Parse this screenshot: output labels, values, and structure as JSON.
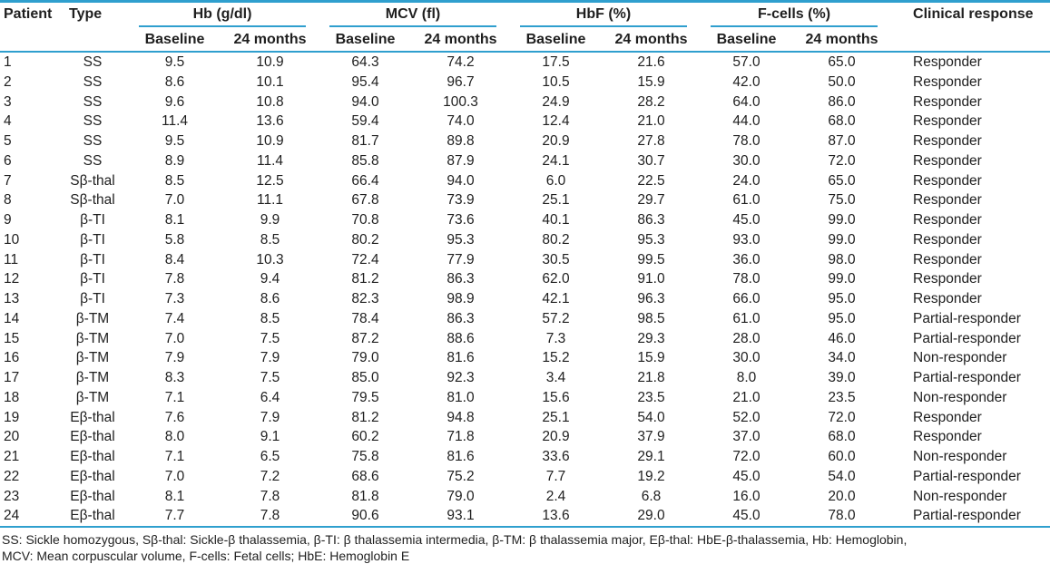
{
  "colors": {
    "rule": "#2f9fce",
    "text": "#1f1f1f",
    "background": "#ffffff"
  },
  "table": {
    "header": {
      "patient": "Patient",
      "type": "Type",
      "groups": [
        {
          "label": "Hb (g/dl)",
          "sub": [
            "Baseline",
            "24 months"
          ]
        },
        {
          "label": "MCV (fl)",
          "sub": [
            "Baseline",
            "24 months"
          ]
        },
        {
          "label": "HbF (%)",
          "sub": [
            "Baseline",
            "24 months"
          ]
        },
        {
          "label": "F-cells (%)",
          "sub": [
            "Baseline",
            "24 months"
          ]
        }
      ],
      "clinical_response": "Clinical response"
    },
    "rows": [
      [
        "1",
        "SS",
        "9.5",
        "10.9",
        "64.3",
        "74.2",
        "17.5",
        "21.6",
        "57.0",
        "65.0",
        "Responder"
      ],
      [
        "2",
        "SS",
        "8.6",
        "10.1",
        "95.4",
        "96.7",
        "10.5",
        "15.9",
        "42.0",
        "50.0",
        "Responder"
      ],
      [
        "3",
        "SS",
        "9.6",
        "10.8",
        "94.0",
        "100.3",
        "24.9",
        "28.2",
        "64.0",
        "86.0",
        "Responder"
      ],
      [
        "4",
        "SS",
        "11.4",
        "13.6",
        "59.4",
        "74.0",
        "12.4",
        "21.0",
        "44.0",
        "68.0",
        "Responder"
      ],
      [
        "5",
        "SS",
        "9.5",
        "10.9",
        "81.7",
        "89.8",
        "20.9",
        "27.8",
        "78.0",
        "87.0",
        "Responder"
      ],
      [
        "6",
        "SS",
        "8.9",
        "11.4",
        "85.8",
        "87.9",
        "24.1",
        "30.7",
        "30.0",
        "72.0",
        "Responder"
      ],
      [
        "7",
        "Sβ-thal",
        "8.5",
        "12.5",
        "66.4",
        "94.0",
        "6.0",
        "22.5",
        "24.0",
        "65.0",
        "Responder"
      ],
      [
        "8",
        "Sβ-thal",
        "7.0",
        "11.1",
        "67.8",
        "73.9",
        "25.1",
        "29.7",
        "61.0",
        "75.0",
        "Responder"
      ],
      [
        "9",
        "β-TI",
        "8.1",
        "9.9",
        "70.8",
        "73.6",
        "40.1",
        "86.3",
        "45.0",
        "99.0",
        "Responder"
      ],
      [
        "10",
        "β-TI",
        "5.8",
        "8.5",
        "80.2",
        "95.3",
        "80.2",
        "95.3",
        "93.0",
        "99.0",
        "Responder"
      ],
      [
        "11",
        "β-TI",
        "8.4",
        "10.3",
        "72.4",
        "77.9",
        "30.5",
        "99.5",
        "36.0",
        "98.0",
        "Responder"
      ],
      [
        "12",
        "β-TI",
        "7.8",
        "9.4",
        "81.2",
        "86.3",
        "62.0",
        "91.0",
        "78.0",
        "99.0",
        "Responder"
      ],
      [
        "13",
        "β-TI",
        "7.3",
        "8.6",
        "82.3",
        "98.9",
        "42.1",
        "96.3",
        "66.0",
        "95.0",
        "Responder"
      ],
      [
        "14",
        "β-TM",
        "7.4",
        "8.5",
        "78.4",
        "86.3",
        "57.2",
        "98.5",
        "61.0",
        "95.0",
        "Partial-responder"
      ],
      [
        "15",
        "β-TM",
        "7.0",
        "7.5",
        "87.2",
        "88.6",
        "7.3",
        "29.3",
        "28.0",
        "46.0",
        "Partial-responder"
      ],
      [
        "16",
        "β-TM",
        "7.9",
        "7.9",
        "79.0",
        "81.6",
        "15.2",
        "15.9",
        "30.0",
        "34.0",
        "Non-responder"
      ],
      [
        "17",
        "β-TM",
        "8.3",
        "7.5",
        "85.0",
        "92.3",
        "3.4",
        "21.8",
        "8.0",
        "39.0",
        "Partial-responder"
      ],
      [
        "18",
        "β-TM",
        "7.1",
        "6.4",
        "79.5",
        "81.0",
        "15.6",
        "23.5",
        "21.0",
        "23.5",
        "Non-responder"
      ],
      [
        "19",
        "Eβ-thal",
        "7.6",
        "7.9",
        "81.2",
        "94.8",
        "25.1",
        "54.0",
        "52.0",
        "72.0",
        "Responder"
      ],
      [
        "20",
        "Eβ-thal",
        "8.0",
        "9.1",
        "60.2",
        "71.8",
        "20.9",
        "37.9",
        "37.0",
        "68.0",
        "Responder"
      ],
      [
        "21",
        "Eβ-thal",
        "7.1",
        "6.5",
        "75.8",
        "81.6",
        "33.6",
        "29.1",
        "72.0",
        "60.0",
        "Non-responder"
      ],
      [
        "22",
        "Eβ-thal",
        "7.0",
        "7.2",
        "68.6",
        "75.2",
        "7.7",
        "19.2",
        "45.0",
        "54.0",
        "Partial-responder"
      ],
      [
        "23",
        "Eβ-thal",
        "8.1",
        "7.8",
        "81.8",
        "79.0",
        "2.4",
        "6.8",
        "16.0",
        "20.0",
        "Non-responder"
      ],
      [
        "24",
        "Eβ-thal",
        "7.7",
        "7.8",
        "90.6",
        "93.1",
        "13.6",
        "29.0",
        "45.0",
        "78.0",
        "Partial-responder"
      ]
    ],
    "footnotes": [
      "SS: Sickle homozygous, Sβ-thal: Sickle-β thalassemia, β-TI: β thalassemia intermedia, β-TM: β thalassemia major, Eβ-thal: HbE-β-thalassemia, Hb: Hemoglobin,",
      "MCV: Mean corpuscular volume, F-cells: Fetal cells; HbE: Hemoglobin E"
    ]
  }
}
